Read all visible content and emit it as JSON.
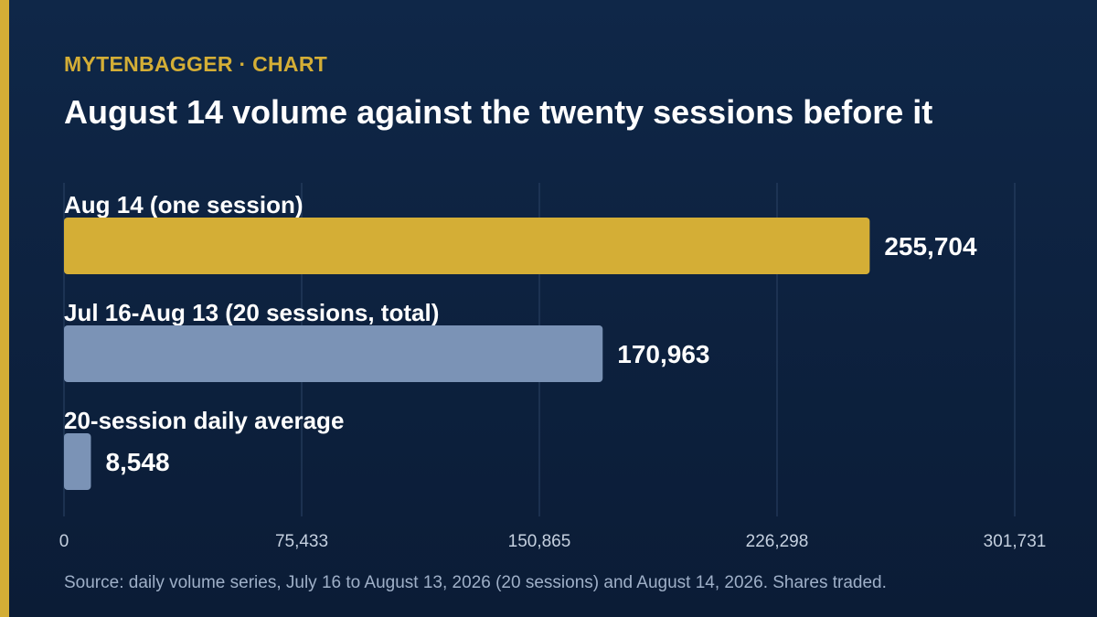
{
  "header": {
    "kicker": "MYTENBAGGER · CHART",
    "title": "August 14 volume against the twenty sessions before it"
  },
  "colors": {
    "accent": "#d4ae36",
    "highlight_bar": "#d4ae36",
    "comparison_bar": "#7b93b6",
    "gridline": "#2c4466",
    "tick_text": "#c5d0df"
  },
  "chart_data": {
    "type": "bar",
    "orientation": "horizontal",
    "title": "August 14 volume against the twenty sessions before it",
    "categories": [
      "Aug 14 (one session)",
      "Jul 16-Aug 13 (20 sessions, total)",
      "20-session daily average"
    ],
    "values": [
      255704,
      170963,
      8548
    ],
    "value_labels": [
      "255,704",
      "170,963",
      "8,548"
    ],
    "highlight_index": 0,
    "xlim": [
      0,
      301731
    ],
    "xticks": [
      0,
      75433,
      150865,
      226298,
      301731
    ],
    "xtick_labels": [
      "0",
      "75,433",
      "150,865",
      "226,298",
      "301,731"
    ],
    "grid": true,
    "legend": "none"
  },
  "footer": {
    "source": "Source: daily volume series, July 16 to August 13, 2026 (20 sessions) and August 14, 2026. Shares traded."
  }
}
